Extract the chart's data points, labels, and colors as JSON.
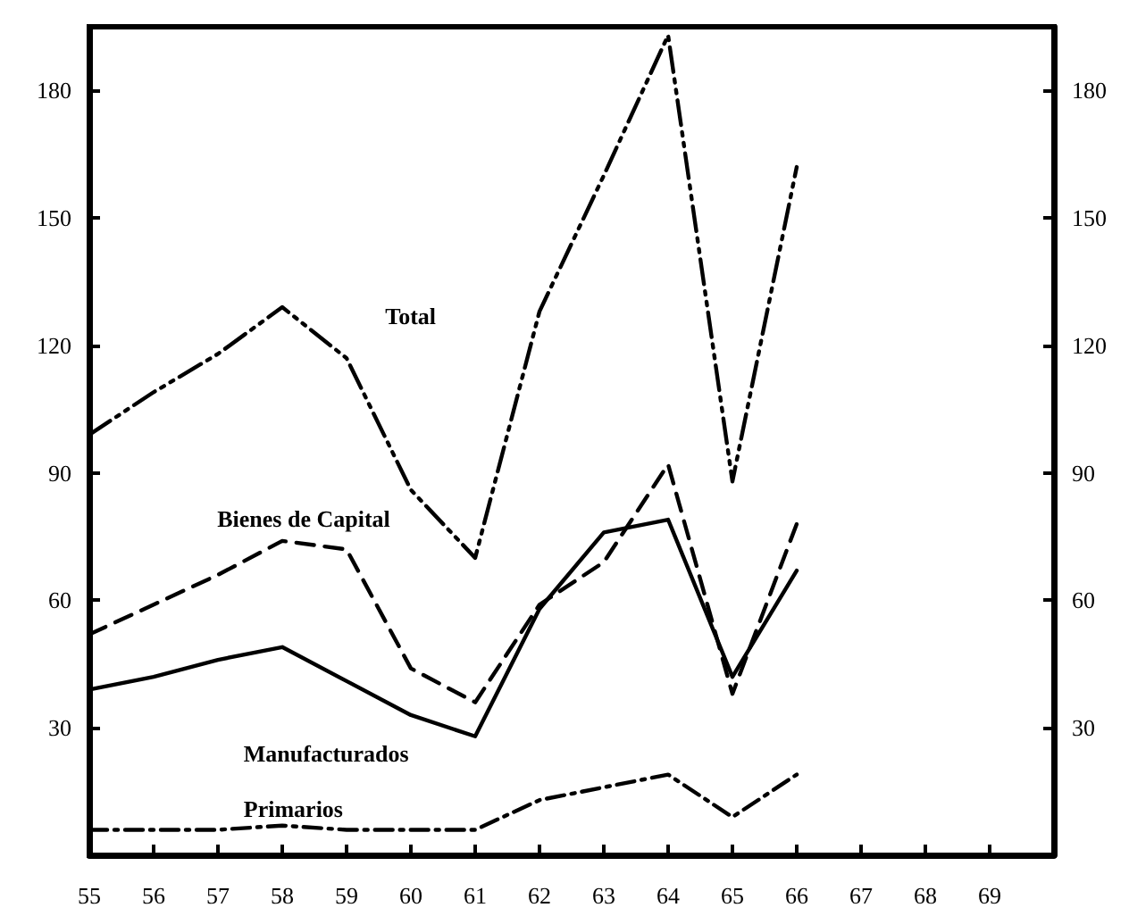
{
  "chart_data": {
    "type": "line",
    "x": [
      55,
      56,
      57,
      58,
      59,
      60,
      61,
      62,
      63,
      64,
      65,
      66
    ],
    "series": [
      {
        "name": "Total",
        "color": "#000000",
        "line_style": "dashed",
        "values": [
          99,
          109,
          118,
          129,
          117,
          86,
          70,
          128,
          160,
          193,
          88,
          162
        ]
      },
      {
        "name": "Bienes de Capital",
        "color": "#000000",
        "line_style": "dashed",
        "values": [
          52,
          59,
          66,
          74,
          72,
          44,
          36,
          59,
          69,
          92,
          38,
          78
        ]
      },
      {
        "name": "Manufacturados",
        "color": "#000000",
        "line_style": "solid",
        "values": [
          39,
          42,
          46,
          49,
          41,
          33,
          28,
          58,
          76,
          79,
          42,
          67
        ]
      },
      {
        "name": "Primarios",
        "color": "#000000",
        "line_style": "dashed",
        "values": [
          6,
          6,
          6,
          7,
          6,
          6,
          6,
          13,
          16,
          19,
          9,
          19
        ]
      }
    ],
    "xlim": [
      55,
      70
    ],
    "xticks": [
      55,
      56,
      57,
      58,
      59,
      60,
      61,
      62,
      63,
      64,
      65,
      66,
      67,
      68,
      69
    ],
    "ylim": [
      0,
      195
    ],
    "yticks": [
      30,
      60,
      90,
      120,
      150,
      180
    ],
    "y2lim": [
      0,
      195
    ],
    "y2ticks": [
      30,
      60,
      90,
      120,
      150,
      180
    ],
    "grid": false,
    "legend": false,
    "marker": "none"
  }
}
